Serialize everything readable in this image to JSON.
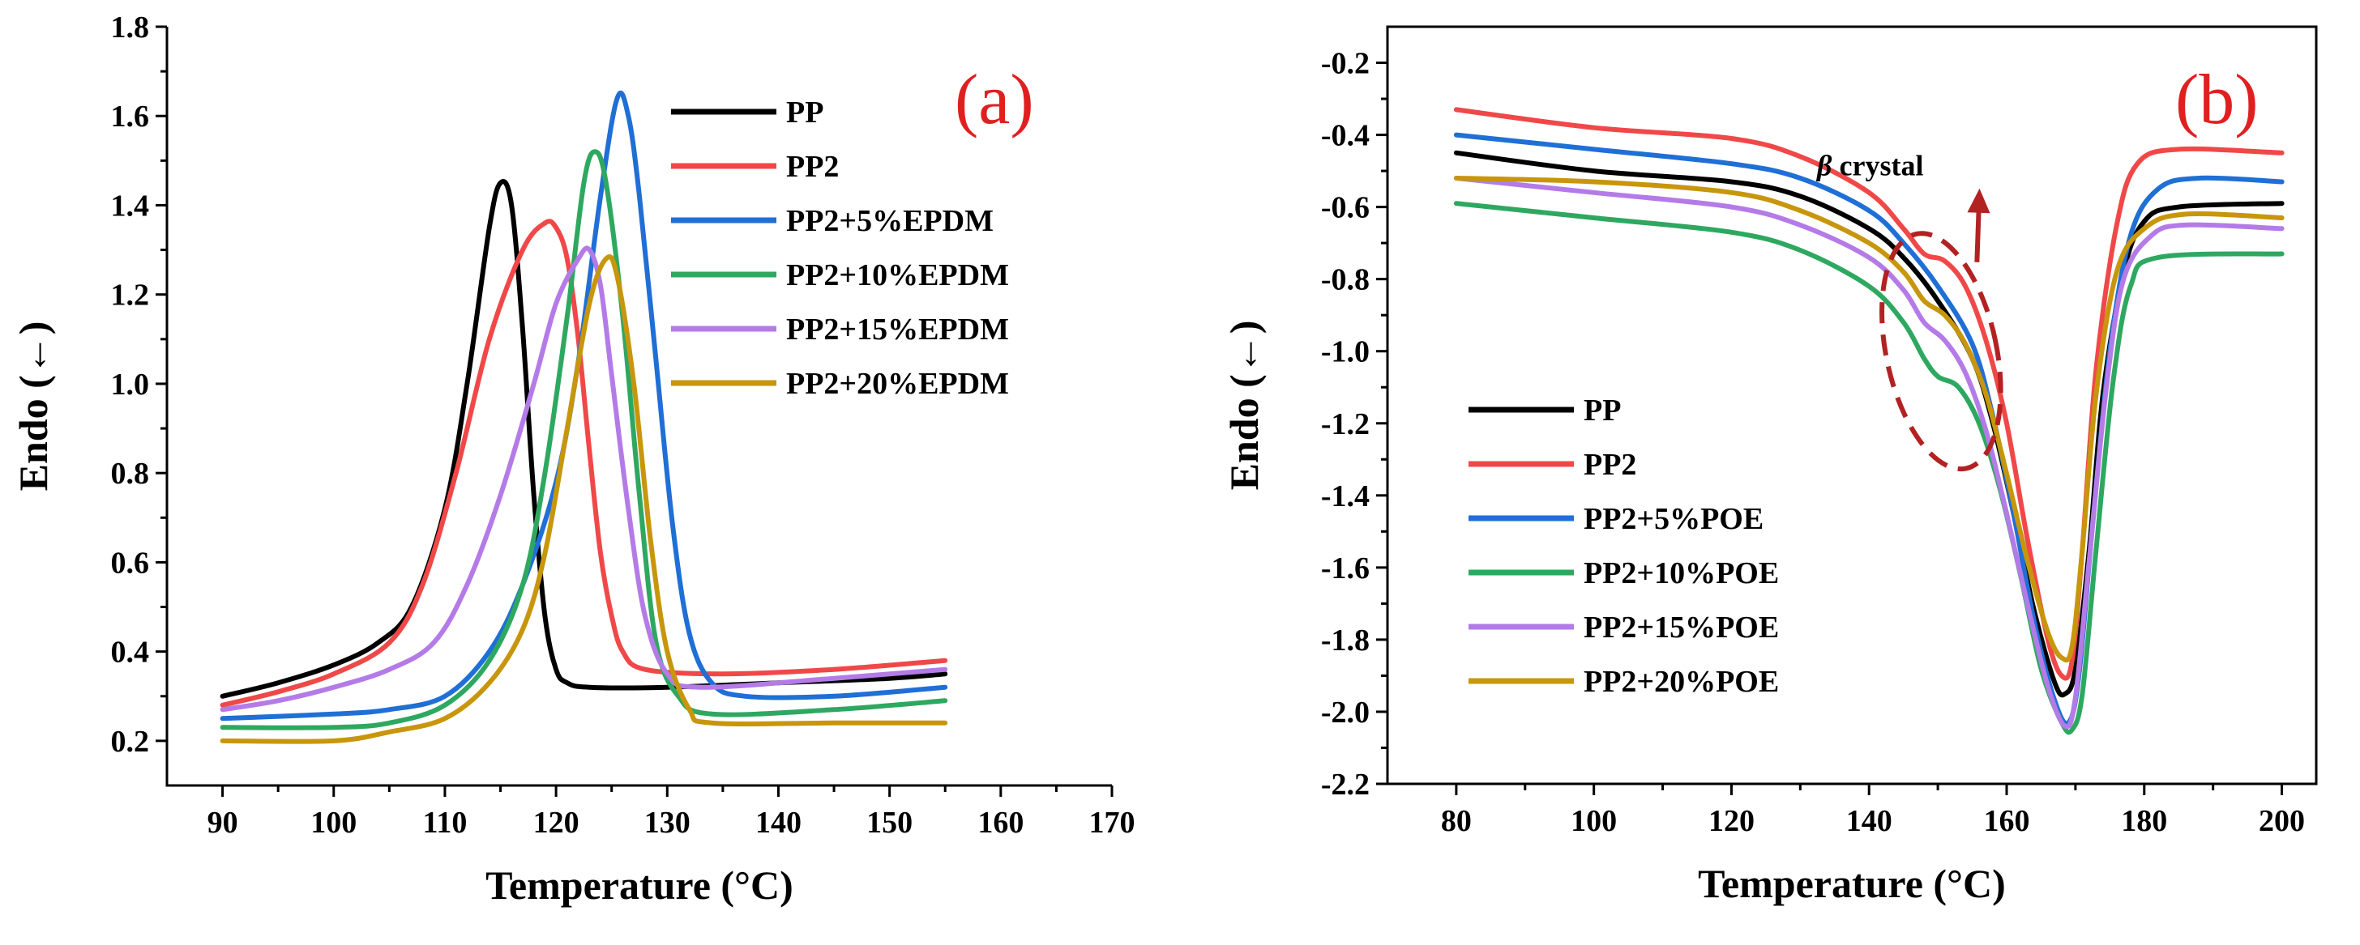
{
  "colors": {
    "PP": "#000000",
    "PP2": "#f04848",
    "EPDM5": "#1f6fd6",
    "EPDM10": "#2ea860",
    "EPDM15": "#b47be8",
    "EPDM20": "#c8960c",
    "label_red": "#e02020",
    "annotation_red": "#b22222"
  },
  "chart_data": [
    {
      "type": "line",
      "panel_label": "(a)",
      "title": "",
      "xlabel": "Temperature (°C)",
      "ylabel": "Endo (←)",
      "xlim": [
        85,
        170
      ],
      "ylim": [
        0.1,
        1.8
      ],
      "xticks": [
        "90",
        "100",
        "110",
        "120",
        "130",
        "140",
        "150",
        "160",
        "170"
      ],
      "yticks": [
        "0.2",
        "0.4",
        "0.6",
        "0.8",
        "1.0",
        "1.2",
        "1.4",
        "1.6",
        "1.8"
      ],
      "legend_position": "top-right",
      "series": [
        {
          "name": "PP",
          "color_key": "PP",
          "points": [
            [
              90,
              0.3
            ],
            [
              95,
              0.33
            ],
            [
              100,
              0.37
            ],
            [
              104,
              0.42
            ],
            [
              107,
              0.5
            ],
            [
              110,
              0.72
            ],
            [
              112,
              1.0
            ],
            [
              114,
              1.35
            ],
            [
              115,
              1.45
            ],
            [
              116,
              1.4
            ],
            [
              117,
              1.12
            ],
            [
              118,
              0.75
            ],
            [
              119,
              0.48
            ],
            [
              120,
              0.36
            ],
            [
              121,
              0.33
            ],
            [
              123,
              0.32
            ],
            [
              130,
              0.32
            ],
            [
              140,
              0.33
            ],
            [
              150,
              0.34
            ],
            [
              155,
              0.35
            ]
          ]
        },
        {
          "name": "PP2",
          "color_key": "PP2",
          "points": [
            [
              90,
              0.28
            ],
            [
              95,
              0.31
            ],
            [
              100,
              0.35
            ],
            [
              105,
              0.42
            ],
            [
              108,
              0.55
            ],
            [
              111,
              0.8
            ],
            [
              114,
              1.1
            ],
            [
              117,
              1.3
            ],
            [
              119,
              1.36
            ],
            [
              120,
              1.35
            ],
            [
              121,
              1.28
            ],
            [
              122,
              1.1
            ],
            [
              123,
              0.85
            ],
            [
              124,
              0.62
            ],
            [
              125,
              0.48
            ],
            [
              126,
              0.4
            ],
            [
              128,
              0.36
            ],
            [
              135,
              0.35
            ],
            [
              145,
              0.36
            ],
            [
              155,
              0.38
            ]
          ]
        },
        {
          "name": "PP2+5%EPDM",
          "color_key": "EPDM5",
          "points": [
            [
              90,
              0.25
            ],
            [
              100,
              0.26
            ],
            [
              105,
              0.27
            ],
            [
              110,
              0.3
            ],
            [
              114,
              0.4
            ],
            [
              117,
              0.55
            ],
            [
              120,
              0.78
            ],
            [
              122,
              1.05
            ],
            [
              124,
              1.42
            ],
            [
              125.5,
              1.64
            ],
            [
              126.5,
              1.6
            ],
            [
              127.5,
              1.42
            ],
            [
              129,
              1.05
            ],
            [
              130.5,
              0.68
            ],
            [
              132,
              0.44
            ],
            [
              134,
              0.33
            ],
            [
              137,
              0.3
            ],
            [
              145,
              0.3
            ],
            [
              155,
              0.32
            ]
          ]
        },
        {
          "name": "PP2+10%EPDM",
          "color_key": "EPDM10",
          "points": [
            [
              90,
              0.23
            ],
            [
              100,
              0.23
            ],
            [
              105,
              0.24
            ],
            [
              110,
              0.28
            ],
            [
              114,
              0.38
            ],
            [
              117,
              0.55
            ],
            [
              119,
              0.8
            ],
            [
              121,
              1.15
            ],
            [
              122.5,
              1.45
            ],
            [
              123.5,
              1.52
            ],
            [
              124.5,
              1.45
            ],
            [
              126,
              1.15
            ],
            [
              127.5,
              0.75
            ],
            [
              129,
              0.42
            ],
            [
              131,
              0.3
            ],
            [
              134,
              0.26
            ],
            [
              145,
              0.27
            ],
            [
              155,
              0.29
            ]
          ]
        },
        {
          "name": "PP2+15%EPDM",
          "color_key": "EPDM15",
          "points": [
            [
              90,
              0.27
            ],
            [
              95,
              0.29
            ],
            [
              100,
              0.32
            ],
            [
              105,
              0.36
            ],
            [
              109,
              0.42
            ],
            [
              112,
              0.55
            ],
            [
              115,
              0.75
            ],
            [
              118,
              1.0
            ],
            [
              120,
              1.18
            ],
            [
              122,
              1.28
            ],
            [
              123,
              1.3
            ],
            [
              124,
              1.22
            ],
            [
              125,
              1.02
            ],
            [
              126.5,
              0.72
            ],
            [
              128,
              0.48
            ],
            [
              130,
              0.35
            ],
            [
              133,
              0.32
            ],
            [
              145,
              0.34
            ],
            [
              155,
              0.36
            ]
          ]
        },
        {
          "name": "PP2+20%EPDM",
          "color_key": "EPDM20",
          "points": [
            [
              90,
              0.2
            ],
            [
              100,
              0.2
            ],
            [
              105,
              0.22
            ],
            [
              110,
              0.25
            ],
            [
              114,
              0.33
            ],
            [
              117,
              0.45
            ],
            [
              119,
              0.62
            ],
            [
              121,
              0.9
            ],
            [
              123,
              1.18
            ],
            [
              124.5,
              1.28
            ],
            [
              125.5,
              1.24
            ],
            [
              127,
              1.0
            ],
            [
              128.5,
              0.65
            ],
            [
              130,
              0.4
            ],
            [
              132,
              0.27
            ],
            [
              134,
              0.24
            ],
            [
              145,
              0.24
            ],
            [
              155,
              0.24
            ]
          ]
        }
      ]
    },
    {
      "type": "line",
      "panel_label": "(b)",
      "title": "",
      "xlabel": "Temperature (°C)",
      "ylabel": "Endo (←)",
      "xlim": [
        70,
        205
      ],
      "ylim": [
        -2.2,
        -0.1
      ],
      "xticks": [
        "80",
        "100",
        "120",
        "140",
        "160",
        "180",
        "200"
      ],
      "yticks": [
        "-0.2",
        "-0.4",
        "-0.6",
        "-0.8",
        "-1.0",
        "-1.2",
        "-1.4",
        "-1.6",
        "-1.8",
        "-2.0",
        "-2.2"
      ],
      "legend_position": "lower-left",
      "annotation": {
        "greek": "β",
        "text": " crystal",
        "ellipse_center": [
          150.5,
          -1.0
        ],
        "arrow_to": [
          156,
          -0.58
        ]
      },
      "series": [
        {
          "name": "PP",
          "color_key": "PP",
          "points": [
            [
              80,
              -0.45
            ],
            [
              100,
              -0.5
            ],
            [
              120,
              -0.53
            ],
            [
              130,
              -0.57
            ],
            [
              140,
              -0.66
            ],
            [
              145,
              -0.74
            ],
            [
              150,
              -0.86
            ],
            [
              155,
              -1.02
            ],
            [
              158,
              -1.2
            ],
            [
              161,
              -1.45
            ],
            [
              164,
              -1.72
            ],
            [
              167,
              -1.92
            ],
            [
              168.5,
              -1.95
            ],
            [
              170,
              -1.88
            ],
            [
              172,
              -1.55
            ],
            [
              174,
              -1.12
            ],
            [
              177,
              -0.78
            ],
            [
              180,
              -0.64
            ],
            [
              185,
              -0.6
            ],
            [
              200,
              -0.59
            ]
          ]
        },
        {
          "name": "PP2",
          "color_key": "PP2",
          "points": [
            [
              80,
              -0.33
            ],
            [
              100,
              -0.38
            ],
            [
              120,
              -0.41
            ],
            [
              130,
              -0.46
            ],
            [
              140,
              -0.56
            ],
            [
              145,
              -0.66
            ],
            [
              148,
              -0.73
            ],
            [
              151,
              -0.75
            ],
            [
              154,
              -0.82
            ],
            [
              157,
              -0.97
            ],
            [
              160,
              -1.2
            ],
            [
              163,
              -1.52
            ],
            [
              166,
              -1.8
            ],
            [
              168,
              -1.9
            ],
            [
              169.5,
              -1.86
            ],
            [
              171,
              -1.55
            ],
            [
              173,
              -1.05
            ],
            [
              176,
              -0.65
            ],
            [
              179,
              -0.48
            ],
            [
              185,
              -0.44
            ],
            [
              200,
              -0.45
            ]
          ]
        },
        {
          "name": "PP2+5%POE",
          "color_key": "EPDM5",
          "points": [
            [
              80,
              -0.4
            ],
            [
              100,
              -0.44
            ],
            [
              120,
              -0.48
            ],
            [
              130,
              -0.52
            ],
            [
              140,
              -0.61
            ],
            [
              145,
              -0.7
            ],
            [
              150,
              -0.82
            ],
            [
              155,
              -0.98
            ],
            [
              158,
              -1.18
            ],
            [
              161,
              -1.45
            ],
            [
              164,
              -1.75
            ],
            [
              167,
              -1.97
            ],
            [
              169,
              -2.03
            ],
            [
              170.5,
              -1.9
            ],
            [
              172.5,
              -1.48
            ],
            [
              175,
              -1.0
            ],
            [
              178,
              -0.68
            ],
            [
              182,
              -0.55
            ],
            [
              188,
              -0.52
            ],
            [
              200,
              -0.53
            ]
          ]
        },
        {
          "name": "PP2+10%POE",
          "color_key": "EPDM10",
          "points": [
            [
              80,
              -0.59
            ],
            [
              100,
              -0.63
            ],
            [
              120,
              -0.67
            ],
            [
              130,
              -0.72
            ],
            [
              140,
              -0.82
            ],
            [
              145,
              -0.92
            ],
            [
              148,
              -1.02
            ],
            [
              150,
              -1.07
            ],
            [
              153,
              -1.1
            ],
            [
              156,
              -1.2
            ],
            [
              159,
              -1.38
            ],
            [
              162,
              -1.62
            ],
            [
              165,
              -1.88
            ],
            [
              168,
              -2.03
            ],
            [
              169.5,
              -2.05
            ],
            [
              171,
              -1.95
            ],
            [
              173,
              -1.55
            ],
            [
              175.5,
              -1.08
            ],
            [
              178,
              -0.82
            ],
            [
              182,
              -0.74
            ],
            [
              200,
              -0.73
            ]
          ]
        },
        {
          "name": "PP2+15%POE",
          "color_key": "EPDM15",
          "points": [
            [
              80,
              -0.52
            ],
            [
              100,
              -0.56
            ],
            [
              120,
              -0.6
            ],
            [
              130,
              -0.65
            ],
            [
              140,
              -0.74
            ],
            [
              145,
              -0.83
            ],
            [
              148,
              -0.92
            ],
            [
              151,
              -0.97
            ],
            [
              154,
              -1.06
            ],
            [
              157,
              -1.22
            ],
            [
              160,
              -1.45
            ],
            [
              163,
              -1.7
            ],
            [
              166,
              -1.93
            ],
            [
              168.5,
              -2.04
            ],
            [
              170,
              -1.96
            ],
            [
              172,
              -1.58
            ],
            [
              174.5,
              -1.1
            ],
            [
              177,
              -0.8
            ],
            [
              181,
              -0.68
            ],
            [
              186,
              -0.65
            ],
            [
              200,
              -0.66
            ]
          ]
        },
        {
          "name": "PP2+20%POE",
          "color_key": "EPDM20",
          "points": [
            [
              80,
              -0.52
            ],
            [
              100,
              -0.53
            ],
            [
              120,
              -0.56
            ],
            [
              130,
              -0.61
            ],
            [
              140,
              -0.7
            ],
            [
              145,
              -0.78
            ],
            [
              148,
              -0.86
            ],
            [
              151,
              -0.9
            ],
            [
              154,
              -0.98
            ],
            [
              157,
              -1.12
            ],
            [
              160,
              -1.34
            ],
            [
              163,
              -1.58
            ],
            [
              166,
              -1.78
            ],
            [
              168,
              -1.85
            ],
            [
              169.5,
              -1.82
            ],
            [
              171,
              -1.55
            ],
            [
              173,
              -1.12
            ],
            [
              176,
              -0.78
            ],
            [
              180,
              -0.66
            ],
            [
              186,
              -0.62
            ],
            [
              200,
              -0.63
            ]
          ]
        }
      ]
    }
  ]
}
